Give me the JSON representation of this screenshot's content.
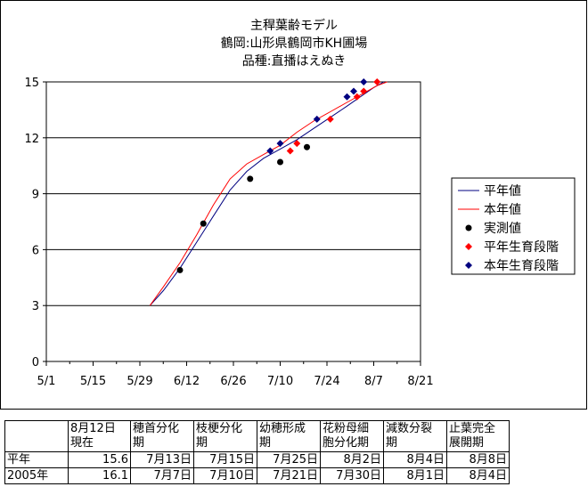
{
  "chart_data": {
    "type": "line",
    "title": [
      "主稈葉齢モデル",
      "鶴岡:山形県鶴岡市KH圃場",
      "品種:直播はえぬき"
    ],
    "xlabel": "",
    "ylabel": "",
    "x_is_date": true,
    "x_ticks": [
      "5/1",
      "5/15",
      "5/29",
      "6/12",
      "6/26",
      "7/10",
      "7/24",
      "8/7",
      "8/21"
    ],
    "xlim": [
      "5/1",
      "8/21"
    ],
    "y_ticks": [
      0,
      3,
      6,
      9,
      12,
      15
    ],
    "ylim": [
      0,
      15
    ],
    "grid": "horizontal",
    "legend_position": "right",
    "series": [
      {
        "name": "平年値",
        "kind": "line",
        "color": "#000080",
        "x": [
          "6/1",
          "6/5",
          "6/10",
          "6/15",
          "6/20",
          "6/25",
          "6/30",
          "7/5",
          "7/10",
          "7/15",
          "7/20",
          "7/25",
          "7/30",
          "8/3",
          "8/7",
          "8/10"
        ],
        "y": [
          3.0,
          3.8,
          5.0,
          6.4,
          7.8,
          9.2,
          10.2,
          10.9,
          11.4,
          11.9,
          12.5,
          13.1,
          13.7,
          14.2,
          14.7,
          15.0
        ]
      },
      {
        "name": "本年値",
        "kind": "line",
        "color": "#ff0000",
        "x": [
          "6/1",
          "6/5",
          "6/10",
          "6/15",
          "6/20",
          "6/25",
          "6/30",
          "7/5",
          "7/10",
          "7/15",
          "7/20",
          "7/25",
          "7/30",
          "8/4",
          "8/8",
          "8/11"
        ],
        "y": [
          3.0,
          4.0,
          5.3,
          6.8,
          8.4,
          9.8,
          10.6,
          11.1,
          11.6,
          12.3,
          12.9,
          13.4,
          13.9,
          14.4,
          14.8,
          15.0
        ]
      },
      {
        "name": "実測値",
        "kind": "marker-circle",
        "color": "#000000",
        "x": [
          "6/10",
          "6/17",
          "7/1",
          "7/10",
          "7/18"
        ],
        "y": [
          4.9,
          7.4,
          9.8,
          10.7,
          11.5
        ]
      },
      {
        "name": "平年生育段階",
        "kind": "marker-diamond",
        "color": "#ff0000",
        "x": [
          "7/13",
          "7/15",
          "7/25",
          "8/2",
          "8/4",
          "8/8"
        ],
        "y": [
          11.3,
          11.7,
          13.0,
          14.2,
          14.5,
          15.0
        ]
      },
      {
        "name": "本年生育段階",
        "kind": "marker-diamond",
        "color": "#000080",
        "x": [
          "7/7",
          "7/10",
          "7/21",
          "7/30",
          "8/1",
          "8/4"
        ],
        "y": [
          11.3,
          11.7,
          13.0,
          14.2,
          14.5,
          15.0
        ]
      }
    ]
  },
  "stage_table": {
    "headers": [
      [
        ""
      ],
      [
        "8月12日",
        "現在"
      ],
      [
        "穂首分化",
        "期"
      ],
      [
        "枝梗分化",
        "期"
      ],
      [
        "幼穂形成",
        "期"
      ],
      [
        "花粉母細",
        "胞分化期"
      ],
      [
        "減数分裂",
        "期"
      ],
      [
        "止葉完全",
        "展開期"
      ]
    ],
    "rows": [
      {
        "label": "平年",
        "cells": [
          "15.6",
          "7月13日",
          "7月15日",
          "7月25日",
          "8月2日",
          "8月4日",
          "8月8日"
        ]
      },
      {
        "label": "2005年",
        "cells": [
          "16.1",
          "7月7日",
          "7月10日",
          "7月21日",
          "7月30日",
          "8月1日",
          "8月4日"
        ]
      }
    ]
  }
}
